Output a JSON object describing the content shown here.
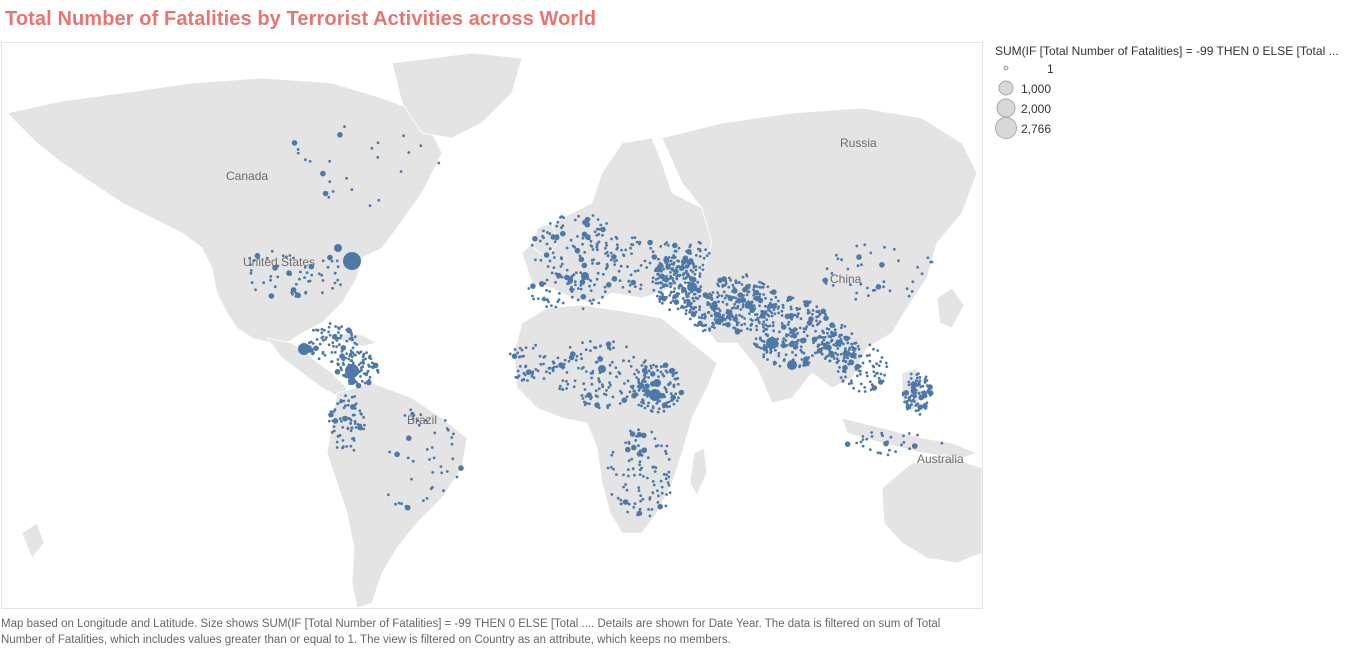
{
  "title": "Total Number of Fatalities by Terrorist Activities across World",
  "map": {
    "country_labels": [
      {
        "id": "canada",
        "text": "Canada"
      },
      {
        "id": "usa",
        "text": "United States"
      },
      {
        "id": "brazil",
        "text": "Brazil"
      },
      {
        "id": "russia",
        "text": "Russia"
      },
      {
        "id": "china",
        "text": "China"
      },
      {
        "id": "australia",
        "text": "Australia"
      }
    ],
    "colors": {
      "land": "#e4e4e4",
      "marker": "#4e79a7",
      "title": "#e8756f"
    }
  },
  "legend": {
    "title": "SUM(IF [Total Number of Fatalities] = -99 THEN 0 ELSE [Total ...",
    "items": [
      {
        "label": "1",
        "value": 1
      },
      {
        "label": "1,000",
        "value": 1000
      },
      {
        "label": "2,000",
        "value": 2000
      },
      {
        "label": "2,766",
        "value": 2766
      }
    ]
  },
  "caption": "Map based on Longitude and Latitude.  Size shows SUM(IF [Total Number of Fatalities] = -99 THEN 0 ELSE [Total ....  Details are shown for Date Year. The data is filtered on sum of Total Number of Fatalities, which includes values greater than or equal to 1. The view is filtered on Country as an attribute, which keeps no members."
}
